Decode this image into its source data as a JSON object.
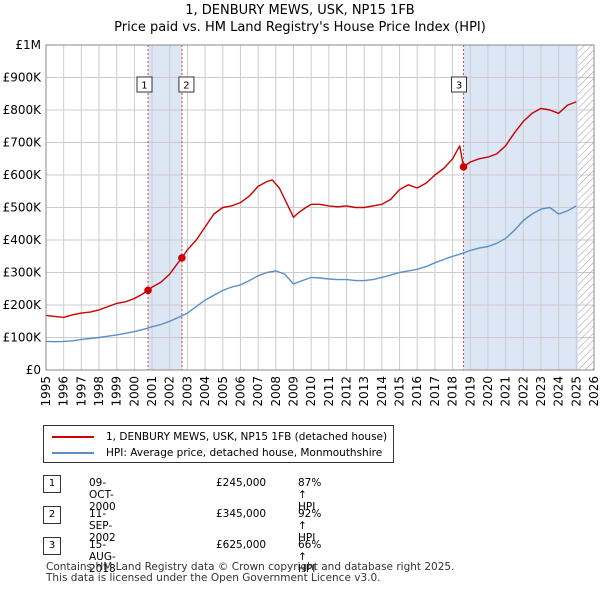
{
  "title_line1": "1, DENBURY MEWS, USK, NP15 1FB",
  "title_line2": "Price paid vs. HM Land Registry's House Price Index (HPI)",
  "legend": {
    "series1": "1, DENBURY MEWS, USK, NP15 1FB (detached house)",
    "series2": "HPI: Average price, detached house, Monmouthshire"
  },
  "transactions": [
    {
      "num": "1",
      "date": "09-OCT-2000",
      "price": "£245,000",
      "hpi": "87% ↑ HPI"
    },
    {
      "num": "2",
      "date": "11-SEP-2002",
      "price": "£345,000",
      "hpi": "92% ↑ HPI"
    },
    {
      "num": "3",
      "date": "15-AUG-2018",
      "price": "£625,000",
      "hpi": "66% ↑ HPI"
    }
  ],
  "footer_line1": "Contains HM Land Registry data © Crown copyright and database right 2025.",
  "footer_line2": "This data is licensed under the Open Government Licence v3.0.",
  "colors": {
    "property": "#cc0000",
    "hpi": "#5b8fc8",
    "shade": "#dde6f5",
    "grid": "#cccccc",
    "hatch": "#aaaaaa"
  },
  "chart_data": {
    "type": "line",
    "title": "1, DENBURY MEWS, USK, NP15 1FB",
    "subtitle": "Price paid vs. HM Land Registry's House Price Index (HPI)",
    "xlim": [
      1995,
      2026
    ],
    "ylim": [
      0,
      1000000
    ],
    "x_ticks": [
      1995,
      1996,
      1997,
      1998,
      1999,
      2000,
      2001,
      2002,
      2003,
      2004,
      2005,
      2006,
      2007,
      2008,
      2009,
      2010,
      2011,
      2012,
      2013,
      2014,
      2015,
      2016,
      2017,
      2018,
      2019,
      2020,
      2021,
      2022,
      2023,
      2024,
      2025,
      2026
    ],
    "y_ticks": [
      {
        "value": 0,
        "label": "£0"
      },
      {
        "value": 100000,
        "label": "£100K"
      },
      {
        "value": 200000,
        "label": "£200K"
      },
      {
        "value": 300000,
        "label": "£300K"
      },
      {
        "value": 400000,
        "label": "£400K"
      },
      {
        "value": 500000,
        "label": "£500K"
      },
      {
        "value": 600000,
        "label": "£600K"
      },
      {
        "value": 700000,
        "label": "£700K"
      },
      {
        "value": 800000,
        "label": "£800K"
      },
      {
        "value": 900000,
        "label": "£900K"
      },
      {
        "value": 1000000,
        "label": "£1M"
      }
    ],
    "grid": true,
    "forecast_start": 2025.1,
    "sales": [
      {
        "label": "1",
        "x": 2000.77,
        "y": 245000
      },
      {
        "label": "2",
        "x": 2002.69,
        "y": 345000
      },
      {
        "label": "3",
        "x": 2018.62,
        "y": 625000
      }
    ],
    "shaded_spans": [
      [
        2000.77,
        2002.69
      ],
      [
        2018.62,
        2025.1
      ]
    ],
    "series": [
      {
        "name": "1, DENBURY MEWS, USK, NP15 1FB (detached house)",
        "x": [
          1995.0,
          1995.5,
          1996.0,
          1996.5,
          1997.0,
          1997.5,
          1998.0,
          1998.5,
          1999.0,
          1999.5,
          2000.0,
          2000.4,
          2000.77,
          2001.0,
          2001.5,
          2002.0,
          2002.4,
          2002.69,
          2003.0,
          2003.5,
          2004.0,
          2004.5,
          2005.0,
          2005.5,
          2006.0,
          2006.5,
          2007.0,
          2007.5,
          2007.8,
          2008.2,
          2008.6,
          2009.0,
          2009.3,
          2009.7,
          2010.0,
          2010.5,
          2011.0,
          2011.5,
          2012.0,
          2012.5,
          2013.0,
          2013.5,
          2014.0,
          2014.5,
          2015.0,
          2015.5,
          2016.0,
          2016.5,
          2017.0,
          2017.5,
          2018.0,
          2018.4,
          2018.62,
          2019.0,
          2019.5,
          2020.0,
          2020.5,
          2021.0,
          2021.5,
          2022.0,
          2022.5,
          2023.0,
          2023.5,
          2024.0,
          2024.5,
          2025.0
        ],
        "y": [
          168000,
          165000,
          162000,
          170000,
          175000,
          178000,
          185000,
          195000,
          205000,
          210000,
          220000,
          232000,
          245000,
          255000,
          270000,
          295000,
          325000,
          345000,
          370000,
          400000,
          440000,
          480000,
          500000,
          505000,
          515000,
          535000,
          565000,
          580000,
          585000,
          560000,
          515000,
          470000,
          485000,
          500000,
          510000,
          510000,
          505000,
          502000,
          505000,
          500000,
          500000,
          505000,
          510000,
          525000,
          555000,
          570000,
          560000,
          575000,
          600000,
          620000,
          650000,
          690000,
          625000,
          640000,
          650000,
          655000,
          665000,
          690000,
          730000,
          765000,
          790000,
          805000,
          800000,
          790000,
          815000,
          825000
        ]
      },
      {
        "name": "HPI: Average price, detached house, Monmouthshire",
        "x": [
          1995.0,
          1995.5,
          1996.0,
          1996.5,
          1997.0,
          1997.5,
          1998.0,
          1998.5,
          1999.0,
          1999.5,
          2000.0,
          2000.5,
          2001.0,
          2001.5,
          2002.0,
          2002.5,
          2003.0,
          2003.5,
          2004.0,
          2004.5,
          2005.0,
          2005.5,
          2006.0,
          2006.5,
          2007.0,
          2007.5,
          2008.0,
          2008.5,
          2009.0,
          2009.5,
          2010.0,
          2010.5,
          2011.0,
          2011.5,
          2012.0,
          2012.5,
          2013.0,
          2013.5,
          2014.0,
          2014.5,
          2015.0,
          2015.5,
          2016.0,
          2016.5,
          2017.0,
          2017.5,
          2018.0,
          2018.5,
          2019.0,
          2019.5,
          2020.0,
          2020.5,
          2021.0,
          2021.5,
          2022.0,
          2022.5,
          2023.0,
          2023.5,
          2024.0,
          2024.5,
          2025.0
        ],
        "y": [
          88000,
          87000,
          88000,
          90000,
          94000,
          97000,
          100000,
          104000,
          108000,
          113000,
          118000,
          125000,
          133000,
          140000,
          150000,
          162000,
          175000,
          195000,
          215000,
          230000,
          245000,
          255000,
          262000,
          275000,
          290000,
          300000,
          305000,
          295000,
          265000,
          275000,
          285000,
          283000,
          280000,
          278000,
          278000,
          275000,
          275000,
          278000,
          285000,
          292000,
          300000,
          305000,
          310000,
          318000,
          330000,
          340000,
          350000,
          358000,
          368000,
          375000,
          380000,
          390000,
          405000,
          430000,
          460000,
          480000,
          495000,
          500000,
          480000,
          490000,
          505000
        ]
      }
    ]
  }
}
